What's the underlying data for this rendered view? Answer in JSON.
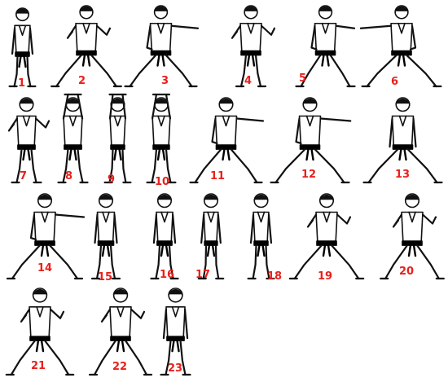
{
  "figures": [
    {
      "label": "1",
      "pose": "ready-stance"
    },
    {
      "label": "2",
      "pose": "low-block-left"
    },
    {
      "label": "3",
      "pose": "lunge-punch-right"
    },
    {
      "label": "4",
      "pose": "inner-block"
    },
    {
      "label": "5",
      "pose": "reverse-punch"
    },
    {
      "label": "6",
      "pose": "lunge-punch-left"
    },
    {
      "label": "7",
      "pose": "side-stance-guard"
    },
    {
      "label": "8",
      "pose": "high-block-front"
    },
    {
      "label": "9",
      "pose": "high-block-side"
    },
    {
      "label": "10",
      "pose": "high-block-back"
    },
    {
      "label": "11",
      "pose": "back-stance-punch"
    },
    {
      "label": "12",
      "pose": "front-stance-punch"
    },
    {
      "label": "13",
      "pose": "back-view-stance"
    },
    {
      "label": "14",
      "pose": "front-stance-punch-right"
    },
    {
      "label": "15",
      "pose": "back-view-ready"
    },
    {
      "label": "16",
      "pose": "back-view-ready"
    },
    {
      "label": "17",
      "pose": "back-view-ready"
    },
    {
      "label": "18",
      "pose": "back-view-ready"
    },
    {
      "label": "19",
      "pose": "knife-hand-block"
    },
    {
      "label": "20",
      "pose": "cat-stance-guard"
    },
    {
      "label": "21",
      "pose": "horse-stance-block"
    },
    {
      "label": "22",
      "pose": "back-stance-knife-hand"
    },
    {
      "label": "23",
      "pose": "closing-ready-stance"
    }
  ],
  "colors": {
    "label": "#e8201b",
    "ink": "#111111",
    "belt": "#000000"
  }
}
